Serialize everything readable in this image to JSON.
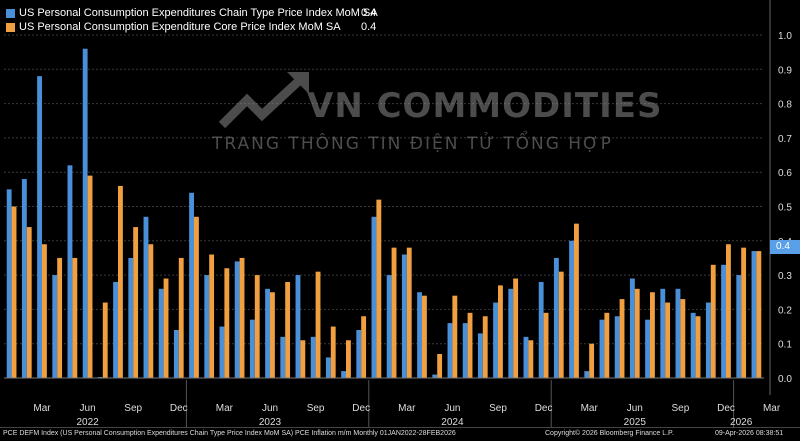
{
  "legend": {
    "series1_name": "US Personal Consumption Expenditures Chain Type Price Index MoM SA",
    "series1_value": "0.4",
    "series2_name": "US Personal Consumption Expenditure Core Price Index MoM SA",
    "series2_value": "0.4"
  },
  "colors": {
    "series1": "#4a90d9",
    "series2": "#f0a040",
    "background": "#000000",
    "grid": "#3a3a3a"
  },
  "watermark": {
    "title": "VN COMMODITIES",
    "subtitle": "TRANG THÔNG TIN ĐIỆN TỬ TỔNG HỢP"
  },
  "last_value_badge": "0.4",
  "footer": {
    "left": "PCE DEFM Index (US Personal Consumption Expenditures Chain Type Price Index MoM SA) PCE Inflation m/m Monthly 01JAN2022-28FEB2026",
    "center": "Copyright© 2026 Bloomberg Finance L.P.",
    "right": "09-Apr-2026 08:38:51"
  },
  "chart_data": {
    "type": "bar",
    "title": "",
    "xlabel": "",
    "ylabel": "",
    "ylim": [
      0,
      1.0
    ],
    "yticks": [
      "0.0",
      "0.1",
      "0.2",
      "0.3",
      "0.4",
      "0.5",
      "0.6",
      "0.7",
      "0.8",
      "0.9",
      "1.0"
    ],
    "month_labels": [
      "Mar",
      "Jun",
      "Sep",
      "Dec",
      "Mar",
      "Jun",
      "Sep",
      "Dec",
      "Mar",
      "Jun",
      "Sep",
      "Dec",
      "Mar",
      "Jun",
      "Sep",
      "Dec",
      "Mar"
    ],
    "month_label_index": [
      2,
      5,
      8,
      11,
      14,
      17,
      20,
      23,
      26,
      29,
      32,
      35,
      38,
      41,
      44,
      47,
      50
    ],
    "year_labels": [
      "2022",
      "2023",
      "2024",
      "2025",
      "2026"
    ],
    "year_label_index": [
      5,
      17,
      29,
      41,
      48
    ],
    "categories": [
      "Jan 2022",
      "Feb 2022",
      "Mar 2022",
      "Apr 2022",
      "May 2022",
      "Jun 2022",
      "Jul 2022",
      "Aug 2022",
      "Sep 2022",
      "Oct 2022",
      "Nov 2022",
      "Dec 2022",
      "Jan 2023",
      "Feb 2023",
      "Mar 2023",
      "Apr 2023",
      "May 2023",
      "Jun 2023",
      "Jul 2023",
      "Aug 2023",
      "Sep 2023",
      "Oct 2023",
      "Nov 2023",
      "Dec 2023",
      "Jan 2024",
      "Feb 2024",
      "Mar 2024",
      "Apr 2024",
      "May 2024",
      "Jun 2024",
      "Jul 2024",
      "Aug 2024",
      "Sep 2024",
      "Oct 2024",
      "Nov 2024",
      "Dec 2024",
      "Jan 2025",
      "Feb 2025",
      "Mar 2025",
      "Apr 2025",
      "May 2025",
      "Jun 2025",
      "Jul 2025",
      "Aug 2025",
      "Sep 2025",
      "Oct 2025",
      "Nov 2025",
      "Dec 2025",
      "Jan 2026",
      "Feb 2026"
    ],
    "series": [
      {
        "name": "US Personal Consumption Expenditures Chain Type Price Index MoM SA",
        "values": [
          0.55,
          0.58,
          0.88,
          0.3,
          0.62,
          0.96,
          0.0,
          0.28,
          0.35,
          0.47,
          0.26,
          0.14,
          0.54,
          0.3,
          0.15,
          0.34,
          0.17,
          0.26,
          0.12,
          0.3,
          0.12,
          0.06,
          0.02,
          0.14,
          0.47,
          0.3,
          0.36,
          0.25,
          0.01,
          0.16,
          0.16,
          0.13,
          0.22,
          0.26,
          0.12,
          0.28,
          0.35,
          0.4,
          0.02,
          0.17,
          0.18,
          0.29,
          0.17,
          0.26,
          0.26,
          0.19,
          0.22,
          0.33,
          0.3,
          0.37
        ]
      },
      {
        "name": "US Personal Consumption Expenditure Core Price Index MoM SA",
        "values": [
          0.5,
          0.44,
          0.39,
          0.35,
          0.35,
          0.59,
          0.22,
          0.56,
          0.44,
          0.39,
          0.29,
          0.35,
          0.47,
          0.36,
          0.32,
          0.35,
          0.3,
          0.25,
          0.28,
          0.11,
          0.31,
          0.15,
          0.11,
          0.18,
          0.52,
          0.38,
          0.38,
          0.24,
          0.07,
          0.24,
          0.19,
          0.18,
          0.27,
          0.29,
          0.11,
          0.19,
          0.31,
          0.45,
          0.1,
          0.19,
          0.23,
          0.26,
          0.25,
          0.22,
          0.23,
          0.18,
          0.33,
          0.39,
          0.38,
          0.37
        ]
      }
    ]
  }
}
